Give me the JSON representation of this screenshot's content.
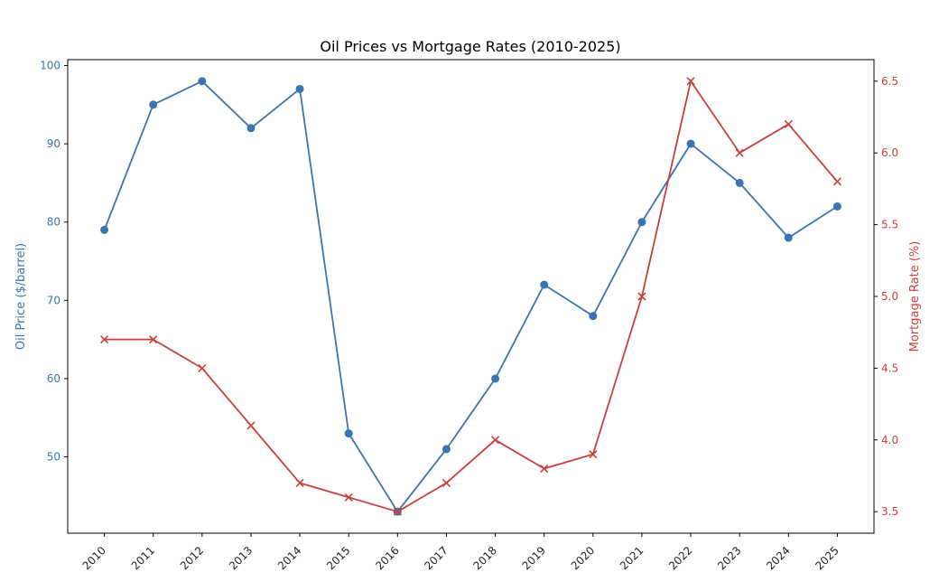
{
  "chart_data": {
    "type": "line",
    "title": "Oil Prices vs Mortgage Rates (2010-2025)",
    "x": [
      2010,
      2011,
      2012,
      2013,
      2014,
      2015,
      2016,
      2017,
      2018,
      2019,
      2020,
      2021,
      2022,
      2023,
      2024,
      2025
    ],
    "x_tick_labels": [
      "2010",
      "2011",
      "2012",
      "2013",
      "2014",
      "2015",
      "2016",
      "2017",
      "2018",
      "2019",
      "2020",
      "2021",
      "2022",
      "2023",
      "2024",
      "2025"
    ],
    "xlim": [
      2009.25,
      2025.75
    ],
    "y_left": {
      "label": "Oil Price ($/barrel)",
      "lim": [
        40.25,
        100.75
      ],
      "ticks": [
        50,
        60,
        70,
        80,
        90,
        100
      ],
      "color": "#3a75b0"
    },
    "y_right": {
      "label": "Mortgage Rate (%)",
      "lim": [
        3.35,
        6.65
      ],
      "ticks": [
        3.5,
        4.0,
        4.5,
        5.0,
        5.5,
        6.0,
        6.5
      ],
      "tick_labels": [
        "3.5",
        "4.0",
        "4.5",
        "5.0",
        "5.5",
        "6.0",
        "6.5"
      ],
      "color": "#c9403a"
    },
    "grid": false,
    "series": [
      {
        "name": "Oil Price",
        "axis": "left",
        "marker": "circle",
        "color": "#3a75b0",
        "values": [
          79,
          95,
          98,
          92,
          97,
          53,
          43,
          51,
          60,
          72,
          68,
          80,
          90,
          85,
          78,
          82
        ]
      },
      {
        "name": "Mortgage Rate",
        "axis": "right",
        "marker": "x",
        "color": "#c9403a",
        "values": [
          4.7,
          4.7,
          4.5,
          4.1,
          3.7,
          3.6,
          3.5,
          3.7,
          4.0,
          3.8,
          3.9,
          5.0,
          6.5,
          6.0,
          6.2,
          5.8
        ]
      }
    ]
  }
}
